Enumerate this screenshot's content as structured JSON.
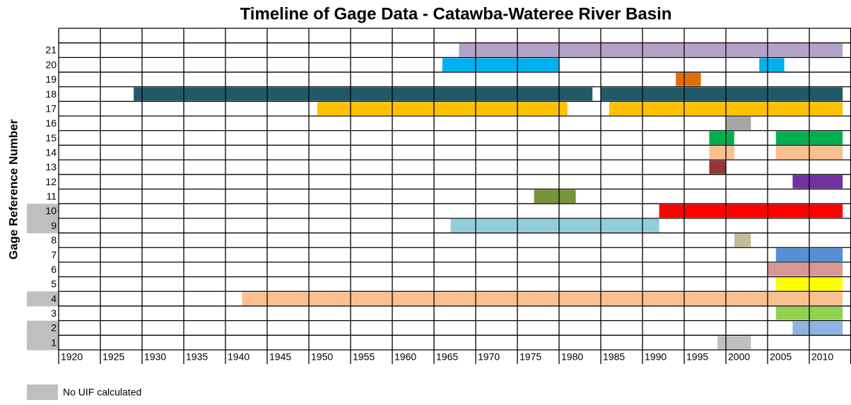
{
  "chart_data": {
    "type": "timeline",
    "title": "Timeline of Gage Data - Catawba-Wateree River Basin",
    "ylabel": "Gage Reference Number",
    "xlim": [
      1920,
      2015
    ],
    "xticks": [
      1920,
      1925,
      1930,
      1935,
      1940,
      1945,
      1950,
      1955,
      1960,
      1965,
      1970,
      1975,
      1980,
      1985,
      1990,
      1995,
      2000,
      2005,
      2010
    ],
    "grid": true,
    "legend_label": "No UIF calculated",
    "legend_color": "#bfbfbf",
    "rows": [
      {
        "label": 1,
        "color": "#bfbfbf",
        "no_uif": true,
        "ranges": [
          [
            1999,
            2003
          ]
        ]
      },
      {
        "label": 2,
        "color": "#8db4e2",
        "no_uif": true,
        "ranges": [
          [
            2008,
            2014
          ]
        ]
      },
      {
        "label": 3,
        "color": "#92d050",
        "no_uif": false,
        "ranges": [
          [
            2006,
            2014
          ]
        ]
      },
      {
        "label": 4,
        "color": "#fac090",
        "no_uif": true,
        "ranges": [
          [
            1942,
            2014
          ]
        ]
      },
      {
        "label": 5,
        "color": "#ffff00",
        "no_uif": false,
        "ranges": [
          [
            2006,
            2014
          ]
        ]
      },
      {
        "label": 6,
        "color": "#d99694",
        "no_uif": false,
        "ranges": [
          [
            2005,
            2014
          ]
        ]
      },
      {
        "label": 7,
        "color": "#558ed5",
        "no_uif": false,
        "ranges": [
          [
            2006,
            2014
          ]
        ]
      },
      {
        "label": 8,
        "color": "#c4bd97",
        "no_uif": false,
        "ranges": [
          [
            2001,
            2003
          ]
        ]
      },
      {
        "label": 9,
        "color": "#92cddc",
        "no_uif": true,
        "ranges": [
          [
            1967,
            1992
          ]
        ]
      },
      {
        "label": 10,
        "color": "#ff0000",
        "no_uif": true,
        "ranges": [
          [
            1992,
            2014
          ]
        ]
      },
      {
        "label": 11,
        "color": "#77933c",
        "no_uif": false,
        "ranges": [
          [
            1977,
            1982
          ]
        ]
      },
      {
        "label": 12,
        "color": "#7030a0",
        "no_uif": false,
        "ranges": [
          [
            2008,
            2014
          ]
        ]
      },
      {
        "label": 13,
        "color": "#953735",
        "no_uif": false,
        "ranges": [
          [
            1998,
            2000
          ]
        ]
      },
      {
        "label": 14,
        "color": "#fac090",
        "no_uif": false,
        "ranges": [
          [
            1998,
            2001
          ],
          [
            2006,
            2014
          ]
        ]
      },
      {
        "label": 15,
        "color": "#00b050",
        "no_uif": false,
        "ranges": [
          [
            1998,
            2001
          ],
          [
            2006,
            2014
          ]
        ]
      },
      {
        "label": 16,
        "color": "#a6a6a6",
        "no_uif": false,
        "ranges": [
          [
            2000,
            2003
          ]
        ]
      },
      {
        "label": 17,
        "color": "#ffc000",
        "no_uif": false,
        "ranges": [
          [
            1951,
            1981
          ],
          [
            1986,
            2014
          ]
        ]
      },
      {
        "label": 18,
        "color": "#215968",
        "no_uif": false,
        "ranges": [
          [
            1929,
            1984
          ],
          [
            1985,
            2014
          ]
        ]
      },
      {
        "label": 19,
        "color": "#e36c09",
        "no_uif": false,
        "ranges": [
          [
            1994,
            1997
          ]
        ]
      },
      {
        "label": 20,
        "color": "#00b0f0",
        "no_uif": false,
        "ranges": [
          [
            1966,
            1980
          ],
          [
            2004,
            2007
          ]
        ]
      },
      {
        "label": 21,
        "color": "#b3a2c7",
        "no_uif": false,
        "ranges": [
          [
            1968,
            2014
          ]
        ]
      }
    ]
  }
}
